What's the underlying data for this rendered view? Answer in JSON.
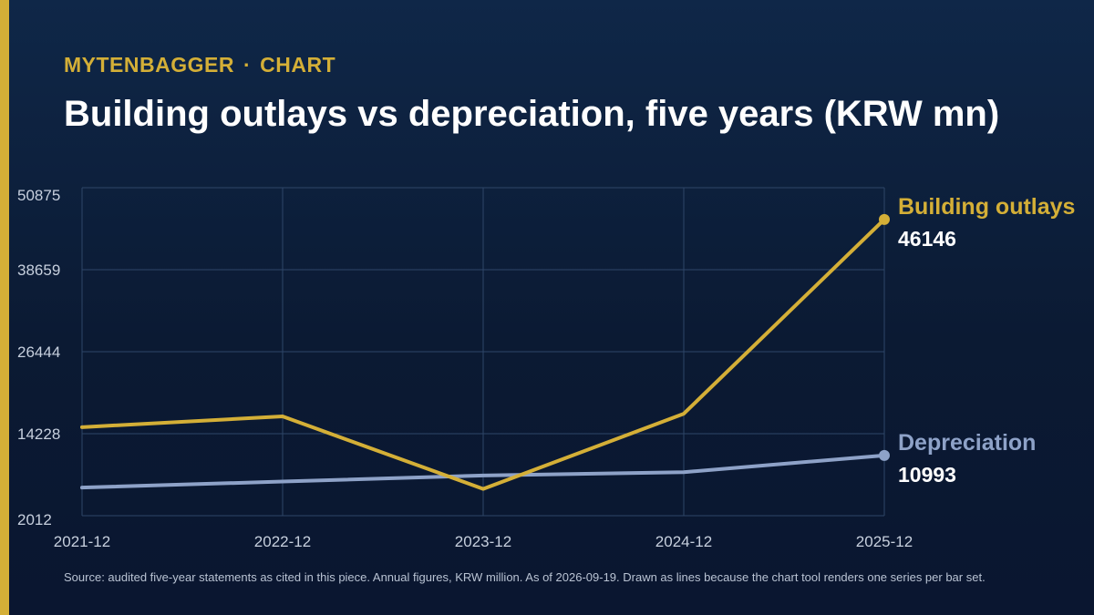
{
  "header": {
    "brand": "MYTENBAGGER",
    "separator": "·",
    "section": "CHART",
    "title": "Building outlays vs depreciation, five years (KRW mn)"
  },
  "colors": {
    "accent": "#d4af37",
    "building_outlays": "#d4af37",
    "depreciation": "#8ea2c8",
    "grid": "#2e4668",
    "text": "#ffffff",
    "muted": "#c7d0de"
  },
  "chart_data": {
    "type": "line",
    "x": [
      "2021-12",
      "2022-12",
      "2023-12",
      "2024-12",
      "2025-12"
    ],
    "series": [
      {
        "name": "Building outlays",
        "values": [
          15200,
          16800,
          6000,
          17200,
          46146
        ],
        "end_label": "46146",
        "color": "#d4af37"
      },
      {
        "name": "Depreciation",
        "values": [
          6200,
          7100,
          8000,
          8500,
          10993
        ],
        "end_label": "10993",
        "color": "#8ea2c8"
      }
    ],
    "yticks": [
      "50875",
      "38659",
      "26444",
      "14228",
      "2012"
    ],
    "ylim": [
      2012,
      50875
    ],
    "grid": true,
    "legend": "end-of-line labels (right)"
  },
  "footer": {
    "source": "Source: audited five-year statements as cited in this piece. Annual figures, KRW million. As of 2026-09-19. Drawn as lines because the chart tool renders one series per bar set."
  }
}
